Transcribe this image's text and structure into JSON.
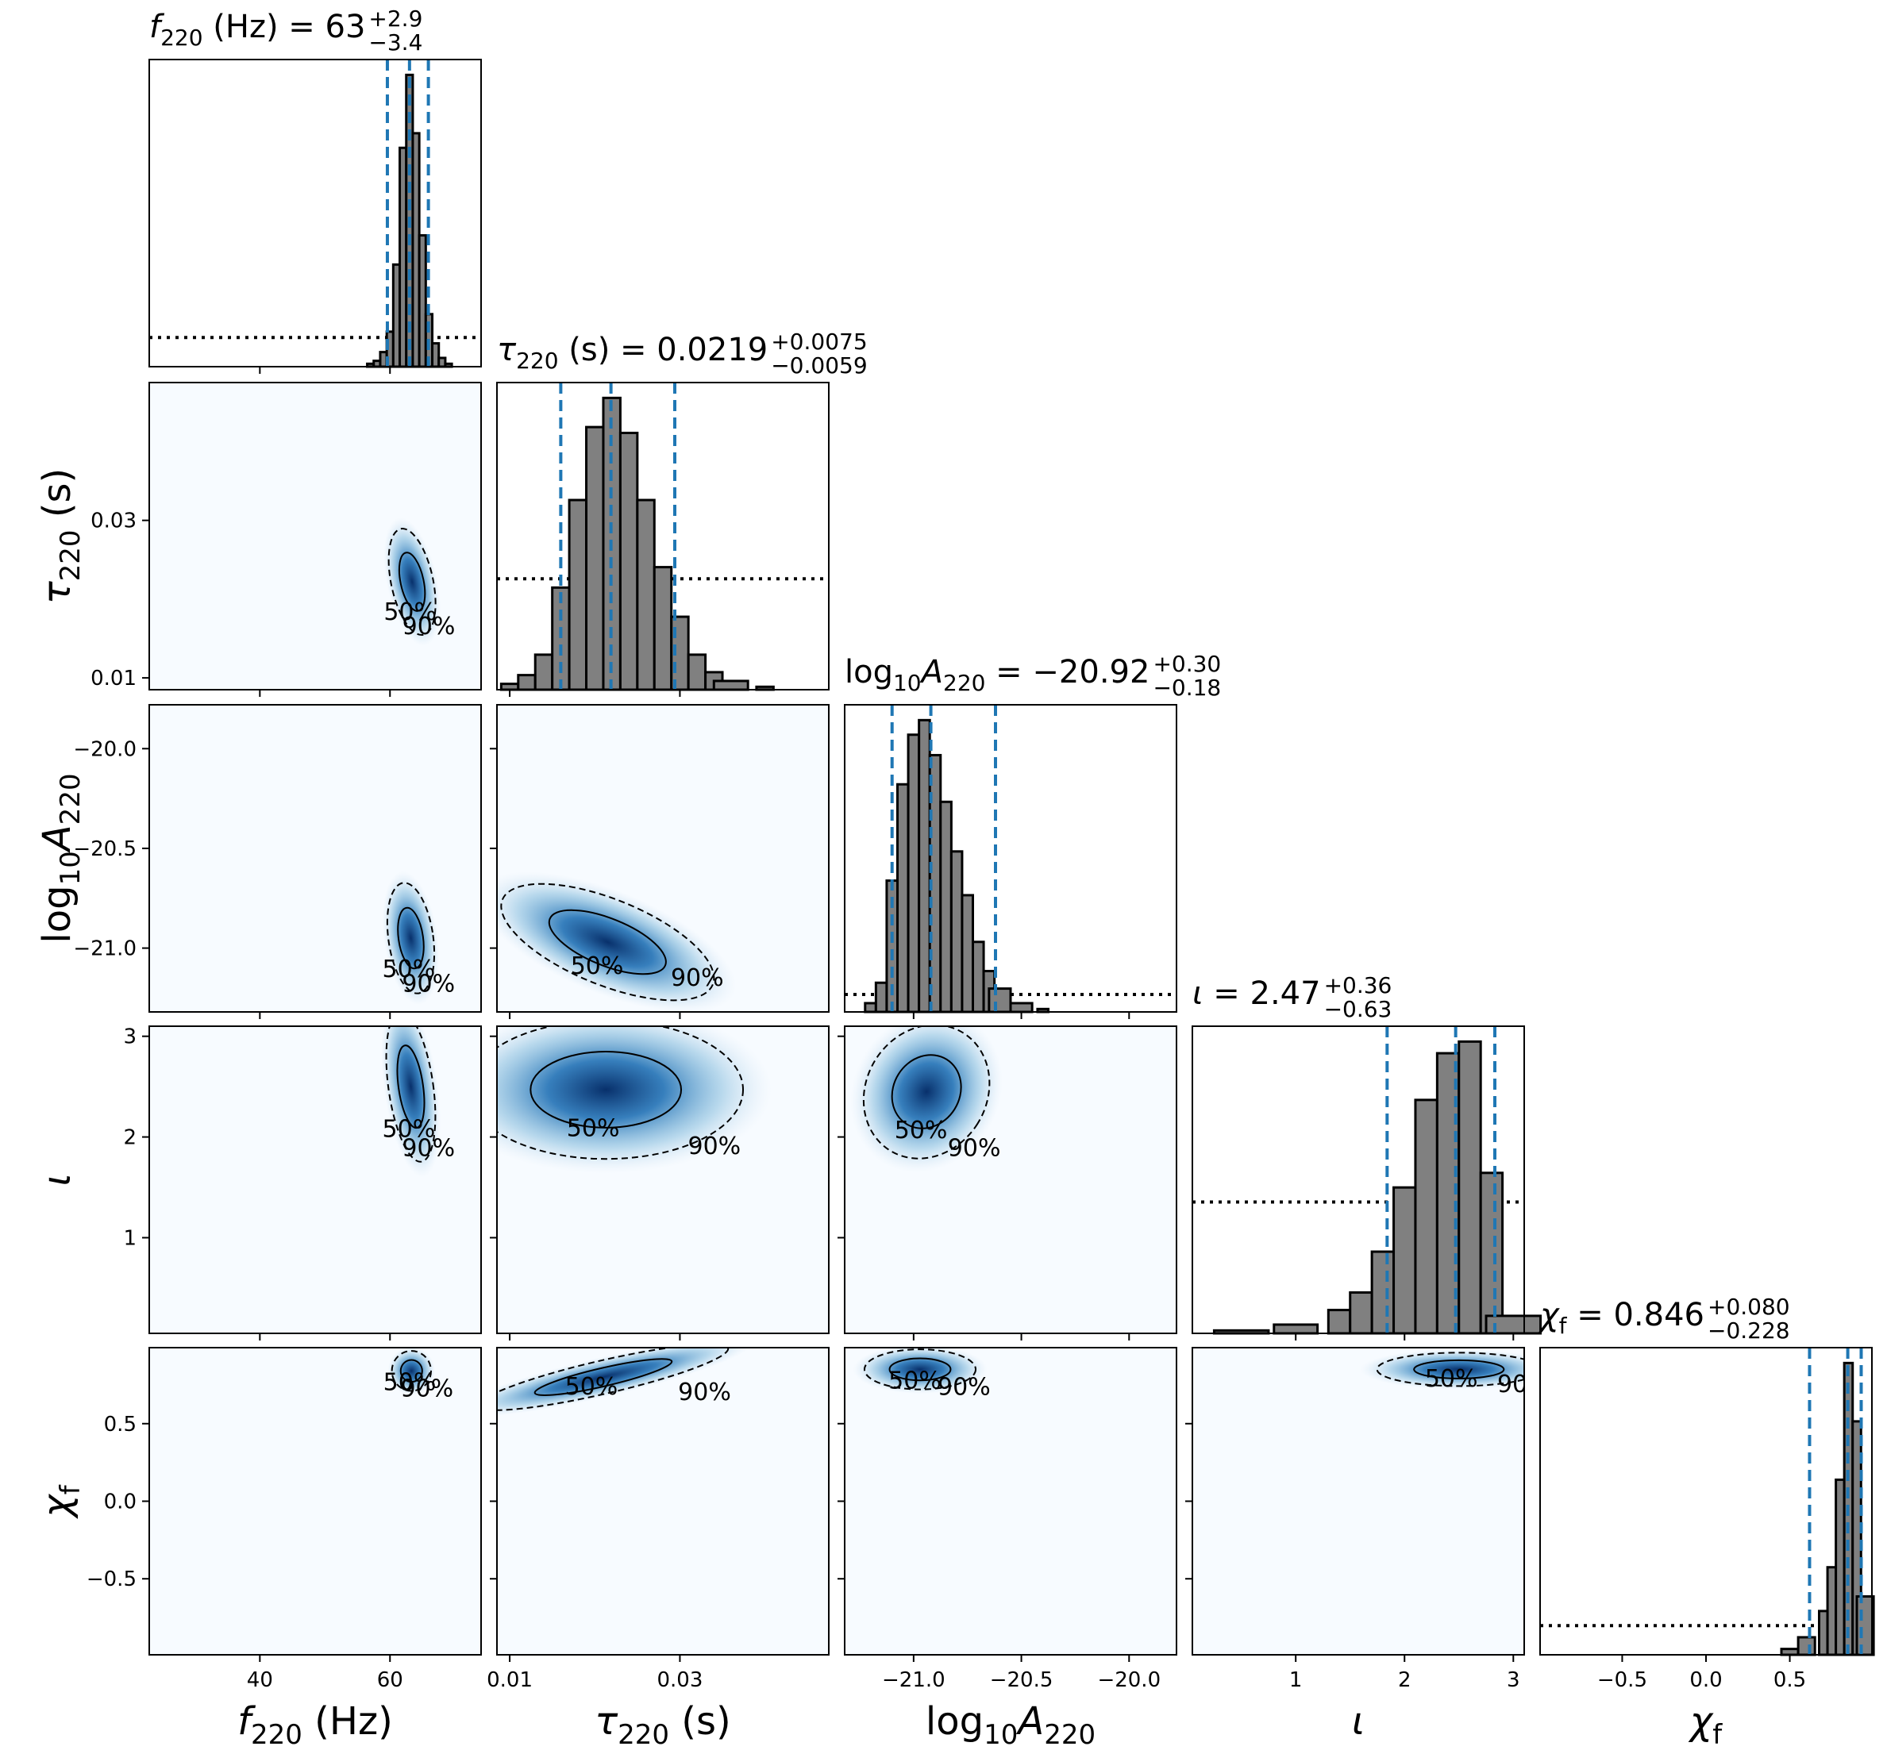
{
  "parameters": [
    {
      "key": "f220",
      "label_base": "f",
      "label_sub": "220",
      "label_unit": " (Hz)",
      "axis_label": "f220 (Hz)",
      "range": [
        23,
        74
      ],
      "ticks": [
        40,
        60
      ],
      "tick_labels": [
        "40",
        "60"
      ],
      "title_value": "63",
      "title_plus": "+2.9",
      "title_minus": "−3.4",
      "median": 63.0,
      "lower": 59.6,
      "upper": 65.9
    },
    {
      "key": "tau220",
      "label_base": "τ",
      "label_sub": "220",
      "label_unit": " (s)",
      "axis_label": "τ220 (s)",
      "range": [
        0.0085,
        0.0475
      ],
      "ticks": [
        0.01,
        0.03
      ],
      "tick_labels": [
        "0.01",
        "0.03"
      ],
      "title_value": "0.0219",
      "title_plus": "+0.0075",
      "title_minus": "−0.0059",
      "median": 0.0219,
      "lower": 0.016,
      "upper": 0.0294
    },
    {
      "key": "logA220",
      "label_base": "log",
      "label_sub": "10",
      "label_extra": "A",
      "label_extra_sub": "220",
      "axis_label": "log10A220",
      "range": [
        -21.32,
        -19.78
      ],
      "ticks": [
        -21.0,
        -20.5,
        -20.0
      ],
      "tick_labels": [
        "−21.0",
        "−20.5",
        "−20.0"
      ],
      "title_prefix": "log10A220 = ",
      "title_value": "−20.92",
      "title_plus": "+0.30",
      "title_minus": "−0.18",
      "median": -20.92,
      "lower": -21.1,
      "upper": -20.62
    },
    {
      "key": "iota",
      "label_base": "ι",
      "label_sub": "",
      "label_unit": "",
      "axis_label": "ι",
      "range": [
        0.05,
        3.1
      ],
      "ticks": [
        1,
        2,
        3
      ],
      "tick_labels": [
        "1",
        "2",
        "3"
      ],
      "title_value": "2.47",
      "title_plus": "+0.36",
      "title_minus": "−0.63",
      "median": 2.47,
      "lower": 1.84,
      "upper": 2.83
    },
    {
      "key": "chif",
      "label_base": "χ",
      "label_sub": "f",
      "label_unit": "",
      "axis_label": "χf",
      "range": [
        -0.99,
        0.99
      ],
      "ticks": [
        -0.5,
        0.0,
        0.5
      ],
      "tick_labels": [
        "−0.5",
        "0.0",
        "0.5"
      ],
      "title_value": "0.846",
      "title_plus": "+0.080",
      "title_minus": "−0.228",
      "median": 0.846,
      "lower": 0.618,
      "upper": 0.926
    }
  ],
  "contour_labels": [
    "50%",
    "90%"
  ],
  "colors": {
    "hist_fill": "#808080",
    "hist_edge": "#000000",
    "quantile_line": "#1f77b4",
    "density": "#08306b"
  },
  "chart_data": {
    "type": "corner",
    "series": [
      {
        "name": "posterior",
        "style": "filled gray histogram"
      },
      {
        "name": "prior",
        "style": "dotted black line"
      }
    ],
    "histograms": {
      "f220": {
        "x": [
          57,
          58,
          59,
          60,
          61,
          62,
          63,
          64,
          65,
          66,
          67,
          68,
          69
        ],
        "posterior": [
          0.01,
          0.02,
          0.05,
          0.12,
          0.35,
          0.75,
          1.0,
          0.8,
          0.45,
          0.18,
          0.08,
          0.03,
          0.01
        ],
        "prior_level": 0.1
      },
      "tau220": {
        "x": [
          0.01,
          0.012,
          0.014,
          0.016,
          0.018,
          0.02,
          0.022,
          0.024,
          0.026,
          0.028,
          0.03,
          0.032,
          0.034,
          0.036,
          0.04
        ],
        "posterior": [
          0.02,
          0.05,
          0.12,
          0.35,
          0.65,
          0.9,
          1.0,
          0.88,
          0.65,
          0.42,
          0.25,
          0.12,
          0.06,
          0.03,
          0.01
        ],
        "prior_level": 0.38
      },
      "logA220": {
        "x": [
          -21.2,
          -21.15,
          -21.1,
          -21.05,
          -21.0,
          -20.95,
          -20.9,
          -20.85,
          -20.8,
          -20.75,
          -20.7,
          -20.65,
          -20.6,
          -20.5,
          -20.4
        ],
        "posterior": [
          0.03,
          0.1,
          0.45,
          0.78,
          0.95,
          1.0,
          0.88,
          0.72,
          0.55,
          0.4,
          0.24,
          0.14,
          0.08,
          0.03,
          0.01
        ],
        "prior_level": 0.06
      },
      "iota": {
        "x": [
          0.5,
          1.0,
          1.4,
          1.6,
          1.8,
          2.0,
          2.2,
          2.4,
          2.6,
          2.8,
          3.0
        ],
        "posterior": [
          0.01,
          0.03,
          0.08,
          0.14,
          0.28,
          0.5,
          0.8,
          0.96,
          1.0,
          0.55,
          0.06
        ],
        "prior_level": 0.45
      },
      "chif": {
        "x": [
          0.5,
          0.6,
          0.7,
          0.75,
          0.8,
          0.85,
          0.9,
          0.95
        ],
        "posterior": [
          0.02,
          0.06,
          0.15,
          0.3,
          0.6,
          1.0,
          0.8,
          0.2
        ],
        "prior_level": 0.1
      }
    },
    "contours": "2D marginal densities with 50% (solid) and 90% (dashed) credible contours"
  }
}
